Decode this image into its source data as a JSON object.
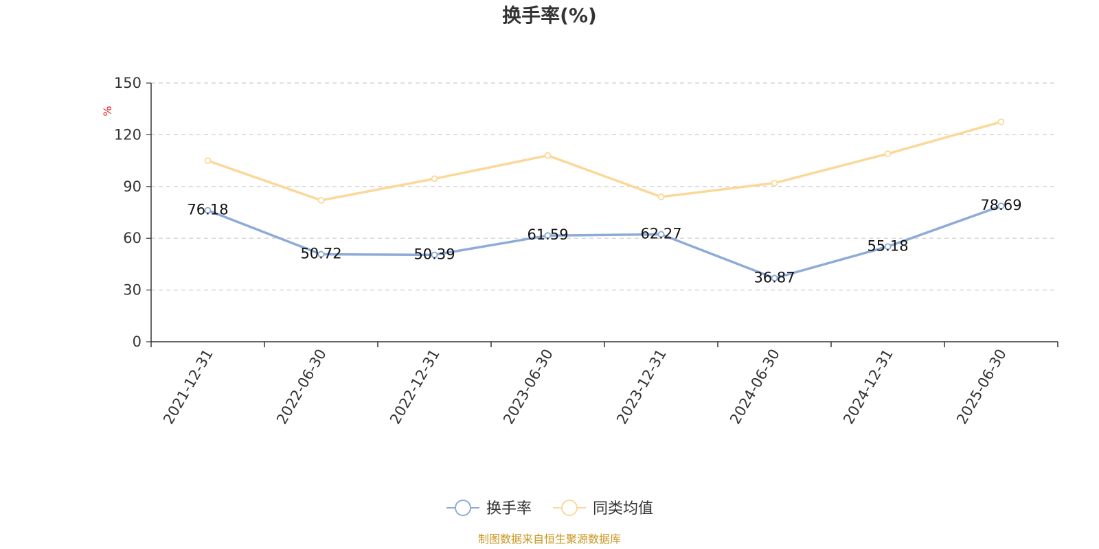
{
  "title": "换手率(%)",
  "source_note": "制图数据来自恒生聚源数据库",
  "chart_data": {
    "type": "line",
    "title": "换手率(%)",
    "xlabel": "",
    "ylabel": "%",
    "ylim": [
      0,
      150
    ],
    "yticks": [
      0,
      30,
      60,
      90,
      120,
      150
    ],
    "grid": true,
    "legend_position": "bottom-center",
    "categories": [
      "2021-12-31",
      "2022-06-30",
      "2022-12-31",
      "2023-06-30",
      "2023-12-31",
      "2024-06-30",
      "2024-12-31",
      "2025-06-30"
    ],
    "series": [
      {
        "name": "换手率",
        "color": "#8eabd7",
        "values": [
          76.18,
          50.72,
          50.39,
          61.59,
          62.27,
          36.87,
          55.18,
          78.69
        ],
        "labels": [
          "76.18",
          "50.72",
          "50.39",
          "61.59",
          "62.27",
          "36.87",
          "55.18",
          "78.69"
        ],
        "show_labels": true
      },
      {
        "name": "同类均值",
        "color": "#fbd89a",
        "values": [
          105,
          82,
          94.5,
          108,
          84,
          92,
          109,
          127.5
        ],
        "show_labels": false
      }
    ]
  }
}
